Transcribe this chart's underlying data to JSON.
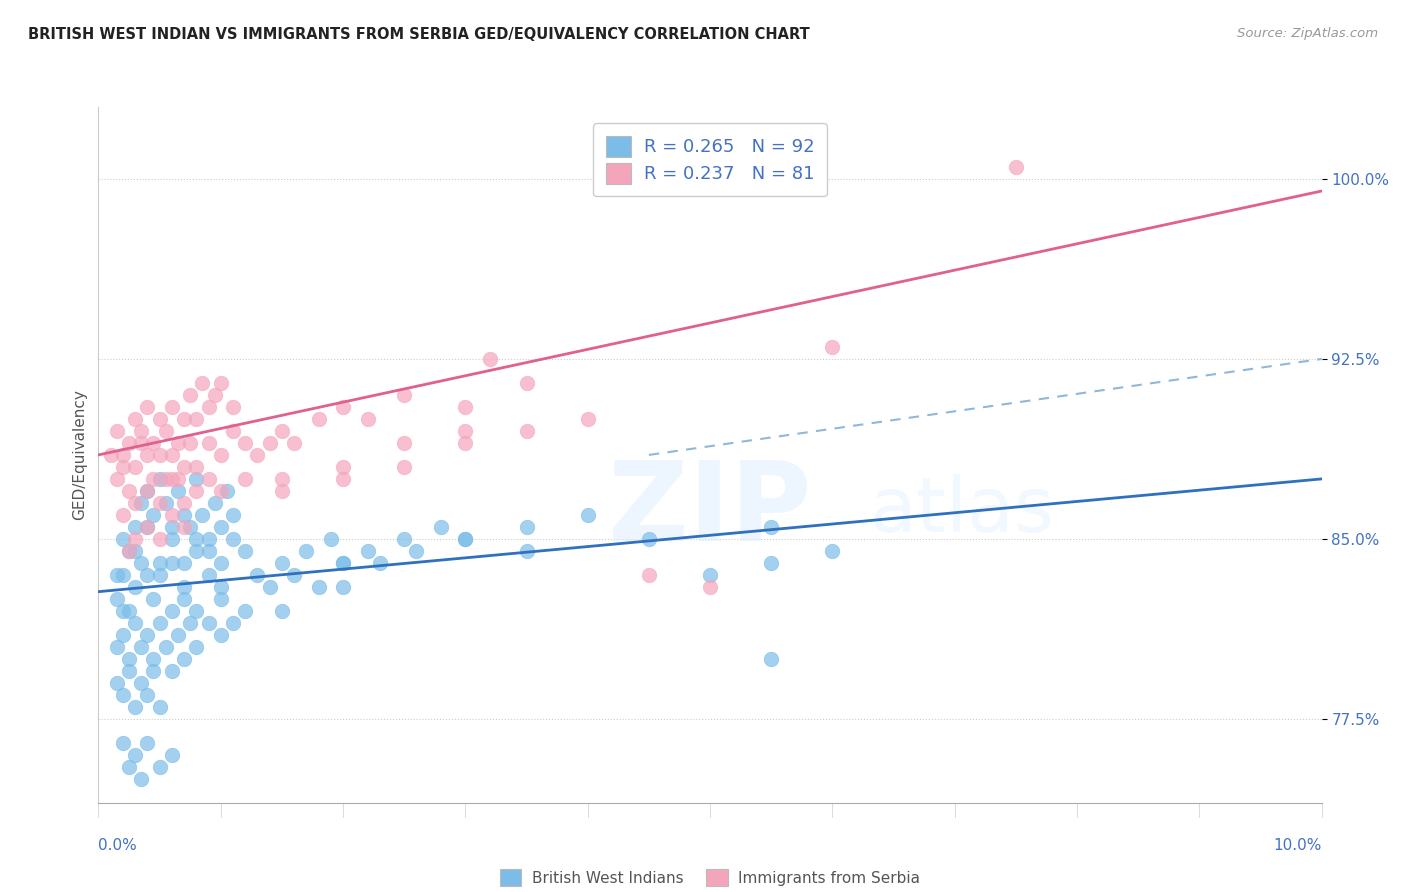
{
  "title": "BRITISH WEST INDIAN VS IMMIGRANTS FROM SERBIA GED/EQUIVALENCY CORRELATION CHART",
  "source": "Source: ZipAtlas.com",
  "ylabel": "GED/Equivalency",
  "xlim": [
    0.0,
    10.0
  ],
  "ylim": [
    74.0,
    103.0
  ],
  "yticks": [
    77.5,
    85.0,
    92.5,
    100.0
  ],
  "ytick_labels": [
    "77.5%",
    "85.0%",
    "92.5%",
    "100.0%"
  ],
  "xtick_left_label": "0.0%",
  "xtick_right_label": "10.0%",
  "blue_color": "#7bbde8",
  "pink_color": "#f4a5bc",
  "blue_line_color": "#3070c0",
  "pink_line_color": "#e06090",
  "dash_line_color": "#90b8d8",
  "blue_label": "British West Indians",
  "pink_label": "Immigrants from Serbia",
  "blue_trend": [
    0.0,
    82.8,
    10.0,
    87.5
  ],
  "pink_trend": [
    0.0,
    88.5,
    10.0,
    99.5
  ],
  "dash_trend": [
    4.5,
    88.5,
    10.0,
    92.5
  ],
  "blue_scatter": [
    [
      0.15,
      83.5
    ],
    [
      0.2,
      82.0
    ],
    [
      0.25,
      84.5
    ],
    [
      0.3,
      85.5
    ],
    [
      0.35,
      86.5
    ],
    [
      0.4,
      87.0
    ],
    [
      0.45,
      86.0
    ],
    [
      0.5,
      87.5
    ],
    [
      0.55,
      86.5
    ],
    [
      0.6,
      85.0
    ],
    [
      0.65,
      87.0
    ],
    [
      0.7,
      86.0
    ],
    [
      0.75,
      85.5
    ],
    [
      0.8,
      87.5
    ],
    [
      0.85,
      86.0
    ],
    [
      0.9,
      85.0
    ],
    [
      0.95,
      86.5
    ],
    [
      1.0,
      85.5
    ],
    [
      1.05,
      87.0
    ],
    [
      1.1,
      86.0
    ],
    [
      0.2,
      85.0
    ],
    [
      0.3,
      84.5
    ],
    [
      0.4,
      85.5
    ],
    [
      0.5,
      84.0
    ],
    [
      0.6,
      85.5
    ],
    [
      0.7,
      84.0
    ],
    [
      0.8,
      85.0
    ],
    [
      0.9,
      84.5
    ],
    [
      1.0,
      84.0
    ],
    [
      1.1,
      85.0
    ],
    [
      0.15,
      82.5
    ],
    [
      0.2,
      83.5
    ],
    [
      0.25,
      82.0
    ],
    [
      0.3,
      83.0
    ],
    [
      0.35,
      84.0
    ],
    [
      0.4,
      83.5
    ],
    [
      0.45,
      82.5
    ],
    [
      0.5,
      83.5
    ],
    [
      0.6,
      84.0
    ],
    [
      0.7,
      83.0
    ],
    [
      0.8,
      84.5
    ],
    [
      0.9,
      83.5
    ],
    [
      1.0,
      83.0
    ],
    [
      1.2,
      84.5
    ],
    [
      1.3,
      83.5
    ],
    [
      1.5,
      84.0
    ],
    [
      1.7,
      84.5
    ],
    [
      1.9,
      85.0
    ],
    [
      2.0,
      84.0
    ],
    [
      2.2,
      84.5
    ],
    [
      2.5,
      85.0
    ],
    [
      2.8,
      85.5
    ],
    [
      3.0,
      85.0
    ],
    [
      3.5,
      85.5
    ],
    [
      4.0,
      86.0
    ],
    [
      0.15,
      80.5
    ],
    [
      0.2,
      81.0
    ],
    [
      0.25,
      80.0
    ],
    [
      0.3,
      81.5
    ],
    [
      0.35,
      80.5
    ],
    [
      0.4,
      81.0
    ],
    [
      0.45,
      80.0
    ],
    [
      0.5,
      81.5
    ],
    [
      0.55,
      80.5
    ],
    [
      0.6,
      82.0
    ],
    [
      0.65,
      81.0
    ],
    [
      0.7,
      82.5
    ],
    [
      0.75,
      81.5
    ],
    [
      0.8,
      82.0
    ],
    [
      0.9,
      81.5
    ],
    [
      1.0,
      82.5
    ],
    [
      1.1,
      81.5
    ],
    [
      1.2,
      82.0
    ],
    [
      1.4,
      83.0
    ],
    [
      1.6,
      83.5
    ],
    [
      1.8,
      83.0
    ],
    [
      2.0,
      84.0
    ],
    [
      2.3,
      84.0
    ],
    [
      2.6,
      84.5
    ],
    [
      3.0,
      85.0
    ],
    [
      0.15,
      79.0
    ],
    [
      0.2,
      78.5
    ],
    [
      0.25,
      79.5
    ],
    [
      0.3,
      78.0
    ],
    [
      0.35,
      79.0
    ],
    [
      0.4,
      78.5
    ],
    [
      0.45,
      79.5
    ],
    [
      0.5,
      78.0
    ],
    [
      0.6,
      79.5
    ],
    [
      0.7,
      80.0
    ],
    [
      0.8,
      80.5
    ],
    [
      1.0,
      81.0
    ],
    [
      1.5,
      82.0
    ],
    [
      2.0,
      83.0
    ],
    [
      3.5,
      84.5
    ],
    [
      4.5,
      85.0
    ],
    [
      5.5,
      85.5
    ],
    [
      5.0,
      83.5
    ],
    [
      5.5,
      84.0
    ],
    [
      6.0,
      84.5
    ],
    [
      0.2,
      76.5
    ],
    [
      0.25,
      75.5
    ],
    [
      0.3,
      76.0
    ],
    [
      0.35,
      75.0
    ],
    [
      0.4,
      76.5
    ],
    [
      0.5,
      75.5
    ],
    [
      0.6,
      76.0
    ],
    [
      5.5,
      80.0
    ]
  ],
  "pink_scatter": [
    [
      0.1,
      88.5
    ],
    [
      0.15,
      89.5
    ],
    [
      0.2,
      88.0
    ],
    [
      0.25,
      89.0
    ],
    [
      0.3,
      90.0
    ],
    [
      0.35,
      89.5
    ],
    [
      0.4,
      90.5
    ],
    [
      0.45,
      89.0
    ],
    [
      0.5,
      90.0
    ],
    [
      0.55,
      89.5
    ],
    [
      0.6,
      90.5
    ],
    [
      0.65,
      89.0
    ],
    [
      0.7,
      90.0
    ],
    [
      0.75,
      91.0
    ],
    [
      0.8,
      90.0
    ],
    [
      0.85,
      91.5
    ],
    [
      0.9,
      90.5
    ],
    [
      0.95,
      91.0
    ],
    [
      1.0,
      91.5
    ],
    [
      1.1,
      90.5
    ],
    [
      0.15,
      87.5
    ],
    [
      0.2,
      88.5
    ],
    [
      0.25,
      87.0
    ],
    [
      0.3,
      88.0
    ],
    [
      0.35,
      89.0
    ],
    [
      0.4,
      88.5
    ],
    [
      0.45,
      87.5
    ],
    [
      0.5,
      88.5
    ],
    [
      0.55,
      87.5
    ],
    [
      0.6,
      88.5
    ],
    [
      0.65,
      87.5
    ],
    [
      0.7,
      88.0
    ],
    [
      0.75,
      89.0
    ],
    [
      0.8,
      88.0
    ],
    [
      0.9,
      89.0
    ],
    [
      1.0,
      88.5
    ],
    [
      1.1,
      89.5
    ],
    [
      1.2,
      89.0
    ],
    [
      1.3,
      88.5
    ],
    [
      1.4,
      89.0
    ],
    [
      1.5,
      89.5
    ],
    [
      1.6,
      89.0
    ],
    [
      1.8,
      90.0
    ],
    [
      2.0,
      90.5
    ],
    [
      2.2,
      90.0
    ],
    [
      2.5,
      91.0
    ],
    [
      3.0,
      90.5
    ],
    [
      3.5,
      91.5
    ],
    [
      4.5,
      83.5
    ],
    [
      5.0,
      83.0
    ],
    [
      0.2,
      86.0
    ],
    [
      0.3,
      86.5
    ],
    [
      0.4,
      87.0
    ],
    [
      0.5,
      86.5
    ],
    [
      0.6,
      87.5
    ],
    [
      0.7,
      86.5
    ],
    [
      0.8,
      87.0
    ],
    [
      0.9,
      87.5
    ],
    [
      1.0,
      87.0
    ],
    [
      1.2,
      87.5
    ],
    [
      1.5,
      87.5
    ],
    [
      2.0,
      88.0
    ],
    [
      2.5,
      89.0
    ],
    [
      3.0,
      89.5
    ],
    [
      0.25,
      84.5
    ],
    [
      0.3,
      85.0
    ],
    [
      0.4,
      85.5
    ],
    [
      0.5,
      85.0
    ],
    [
      0.6,
      86.0
    ],
    [
      0.7,
      85.5
    ],
    [
      1.5,
      87.0
    ],
    [
      2.0,
      87.5
    ],
    [
      2.5,
      88.0
    ],
    [
      3.0,
      89.0
    ],
    [
      3.5,
      89.5
    ],
    [
      4.0,
      90.0
    ],
    [
      7.5,
      100.5
    ],
    [
      6.0,
      93.0
    ],
    [
      3.2,
      92.5
    ]
  ]
}
